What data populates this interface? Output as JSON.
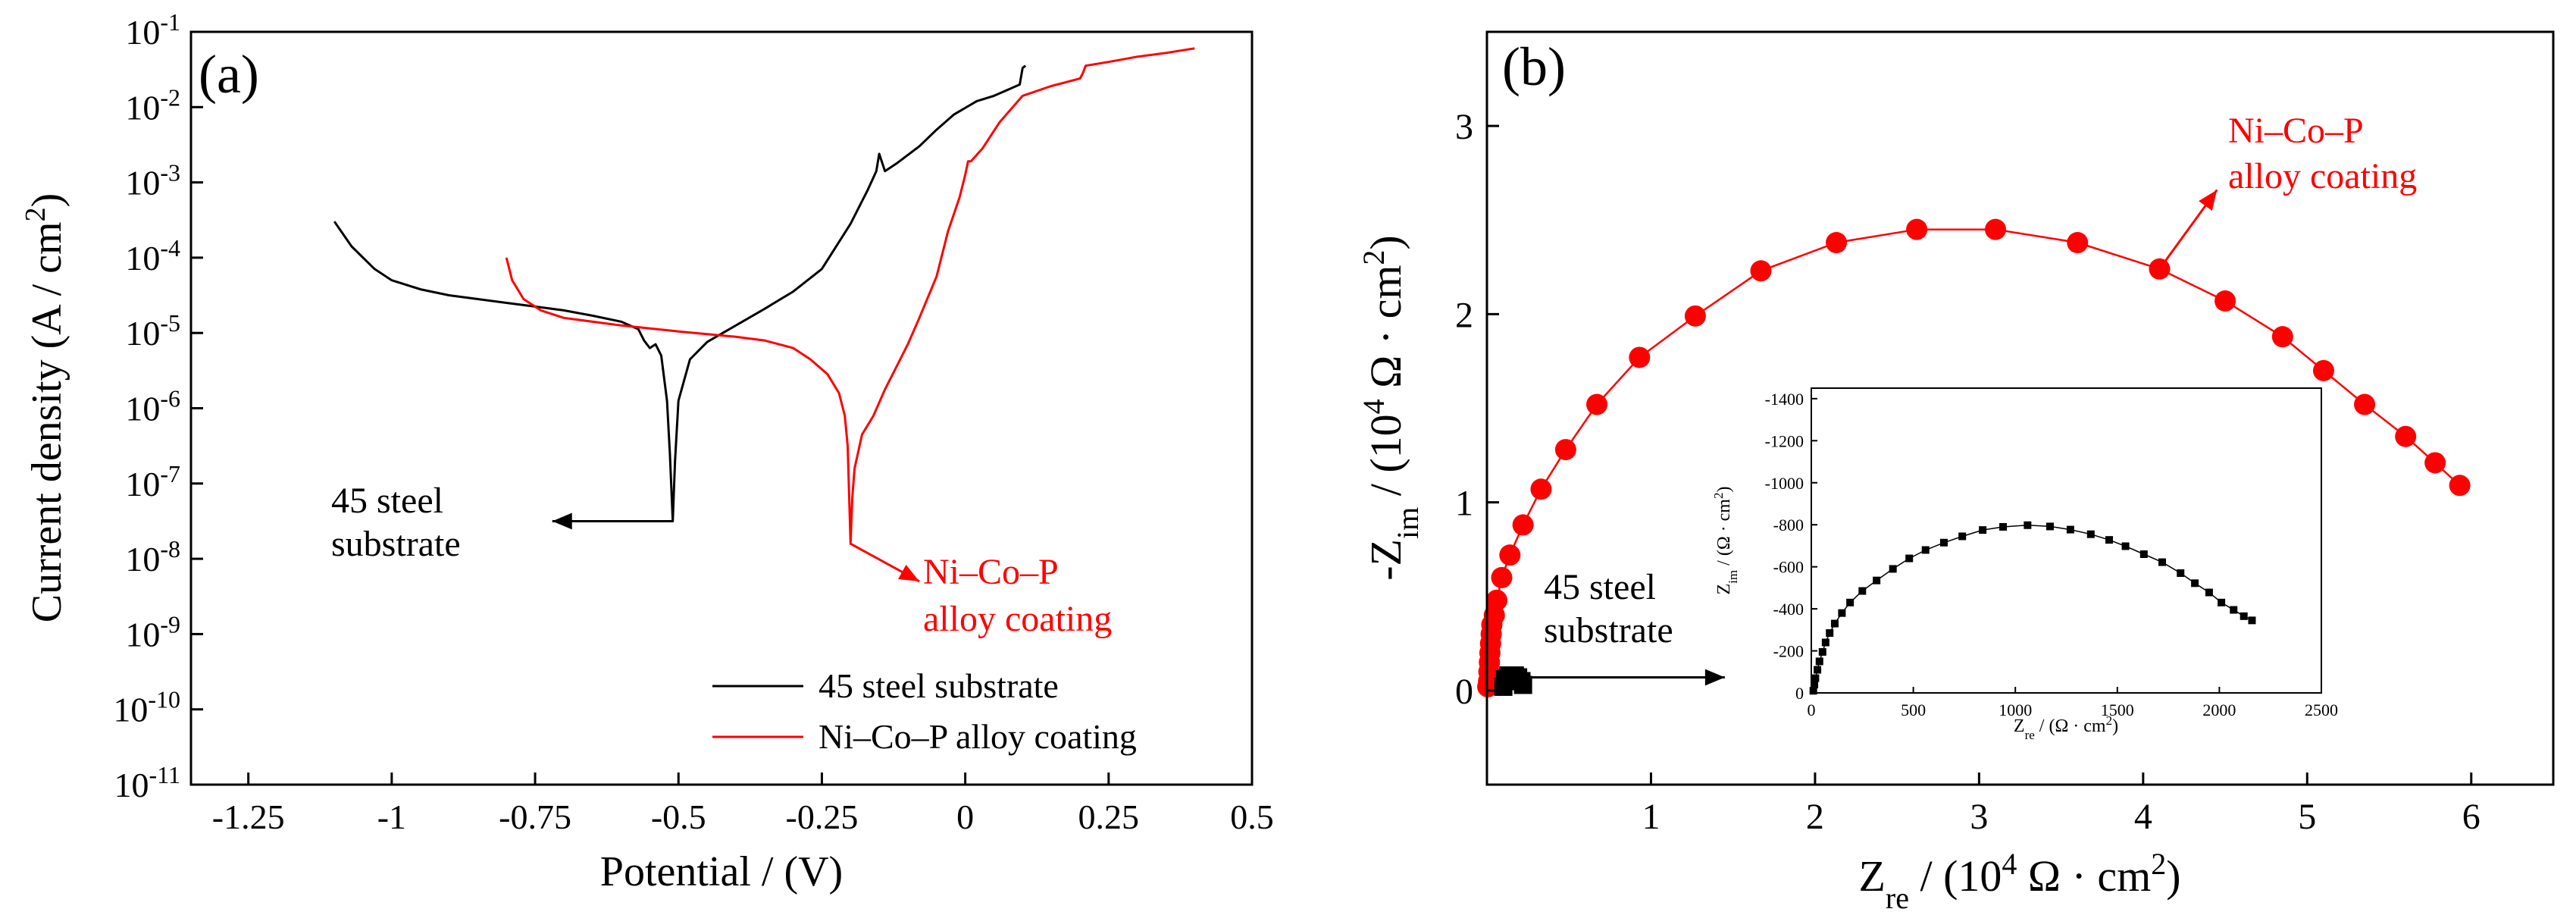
{
  "colors": {
    "steel": "#000000",
    "coating": "#ff0000",
    "axis": "#000000"
  },
  "chart_data": [
    {
      "id": "a",
      "panel_label": "(a)",
      "type": "line",
      "title": "",
      "xlabel": "Potential / (V)",
      "ylabel_main": "Current density (A / cm",
      "ylabel_sup": "2",
      "ylabel_end": ")",
      "xlim": [
        -1.35,
        0.5
      ],
      "ylim_log10": [
        -11,
        -1
      ],
      "yscale": "log",
      "x_ticks": [
        -1.25,
        -1,
        -0.75,
        -0.5,
        -0.25,
        0,
        0.25,
        0.5
      ],
      "x_tick_labels": [
        "-1.25",
        "-1",
        "-0.75",
        "-0.5",
        "-0.25",
        "0",
        "0.25",
        "0.5"
      ],
      "y_ticks_exp": [
        -11,
        -10,
        -9,
        -8,
        -7,
        -6,
        -5,
        -4,
        -3,
        -2,
        -1
      ],
      "y_tick_base": "10",
      "y_tick_exps": [
        "-11",
        "-10",
        "-9",
        "-8",
        "-7",
        "-6",
        "-5",
        "-4",
        "-3",
        "-2",
        "-1"
      ],
      "series": [
        {
          "name": "45 steel substrate",
          "color": "#000000",
          "points": [
            [
              -1.1,
              -3.52
            ],
            [
              -1.07,
              -3.85
            ],
            [
              -1.03,
              -4.15
            ],
            [
              -1.0,
              -4.3
            ],
            [
              -0.95,
              -4.42
            ],
            [
              -0.9,
              -4.5
            ],
            [
              -0.85,
              -4.55
            ],
            [
              -0.8,
              -4.6
            ],
            [
              -0.75,
              -4.65
            ],
            [
              -0.7,
              -4.7
            ],
            [
              -0.65,
              -4.77
            ],
            [
              -0.6,
              -4.85
            ],
            [
              -0.57,
              -4.95
            ],
            [
              -0.56,
              -5.1
            ],
            [
              -0.55,
              -5.2
            ],
            [
              -0.54,
              -5.15
            ],
            [
              -0.53,
              -5.3
            ],
            [
              -0.52,
              -5.9
            ],
            [
              -0.515,
              -6.6
            ],
            [
              -0.51,
              -7.5
            ],
            [
              -0.506,
              -6.7
            ],
            [
              -0.5,
              -5.9
            ],
            [
              -0.48,
              -5.35
            ],
            [
              -0.45,
              -5.12
            ],
            [
              -0.4,
              -4.9
            ],
            [
              -0.35,
              -4.68
            ],
            [
              -0.3,
              -4.45
            ],
            [
              -0.25,
              -4.15
            ],
            [
              -0.2,
              -3.55
            ],
            [
              -0.17,
              -3.1
            ],
            [
              -0.155,
              -2.85
            ],
            [
              -0.15,
              -2.62
            ],
            [
              -0.14,
              -2.85
            ],
            [
              -0.12,
              -2.75
            ],
            [
              -0.08,
              -2.52
            ],
            [
              -0.05,
              -2.3
            ],
            [
              -0.02,
              -2.1
            ],
            [
              0.02,
              -1.92
            ],
            [
              0.05,
              -1.85
            ],
            [
              0.08,
              -1.75
            ],
            [
              0.095,
              -1.7
            ],
            [
              0.1,
              -1.48
            ],
            [
              0.105,
              -1.45
            ]
          ]
        },
        {
          "name": "Ni–Co–P alloy coating",
          "color": "#ff0000",
          "points": [
            [
              -0.8,
              -4.0
            ],
            [
              -0.79,
              -4.3
            ],
            [
              -0.77,
              -4.55
            ],
            [
              -0.74,
              -4.7
            ],
            [
              -0.7,
              -4.8
            ],
            [
              -0.6,
              -4.9
            ],
            [
              -0.5,
              -4.98
            ],
            [
              -0.4,
              -5.05
            ],
            [
              -0.35,
              -5.1
            ],
            [
              -0.3,
              -5.2
            ],
            [
              -0.27,
              -5.35
            ],
            [
              -0.24,
              -5.55
            ],
            [
              -0.22,
              -5.8
            ],
            [
              -0.21,
              -6.1
            ],
            [
              -0.205,
              -6.5
            ],
            [
              -0.2,
              -7.8
            ],
            [
              -0.197,
              -7.2
            ],
            [
              -0.193,
              -6.8
            ],
            [
              -0.18,
              -6.35
            ],
            [
              -0.16,
              -6.1
            ],
            [
              -0.14,
              -5.75
            ],
            [
              -0.12,
              -5.45
            ],
            [
              -0.1,
              -5.15
            ],
            [
              -0.08,
              -4.8
            ],
            [
              -0.05,
              -4.25
            ],
            [
              -0.03,
              -3.65
            ],
            [
              -0.01,
              -3.2
            ],
            [
              0.0,
              -2.9
            ],
            [
              0.005,
              -2.72
            ],
            [
              0.01,
              -2.72
            ],
            [
              0.03,
              -2.55
            ],
            [
              0.06,
              -2.2
            ],
            [
              0.1,
              -1.85
            ],
            [
              0.15,
              -1.72
            ],
            [
              0.2,
              -1.62
            ],
            [
              0.205,
              -1.55
            ],
            [
              0.21,
              -1.45
            ],
            [
              0.25,
              -1.4
            ],
            [
              0.3,
              -1.33
            ],
            [
              0.35,
              -1.28
            ],
            [
              0.4,
              -1.22
            ]
          ]
        }
      ],
      "legend": {
        "position": "bottom-right",
        "entries": [
          "45 steel substrate",
          "Ni–Co–P alloy coating"
        ]
      },
      "annotations": [
        {
          "text_lines": [
            "45 steel",
            "substrate"
          ],
          "color": "#000000",
          "from": [
            -0.51,
            -7.5
          ],
          "to": [
            -0.72,
            -7.5
          ]
        },
        {
          "text_lines": [
            "Ni–Co–P",
            "alloy coating"
          ],
          "color": "#ff0000",
          "from": [
            -0.2,
            -7.8
          ],
          "to": [
            -0.08,
            -8.3
          ]
        }
      ]
    },
    {
      "id": "b",
      "panel_label": "(b)",
      "type": "scatter",
      "xlabel_main": "Z",
      "xlabel_sub": "re",
      "xlabel_rest": " / (10",
      "xlabel_sup": "4",
      "xlabel_end": " Ω · cm",
      "xlabel_sup2": "2",
      "xlabel_close": ")",
      "ylabel_main": "-Z",
      "ylabel_sub": "im",
      "ylabel_rest": " / (10",
      "ylabel_sup": "4",
      "ylabel_end": " Ω · cm",
      "ylabel_sup2": "2",
      "ylabel_close": ")",
      "xlim": [
        0,
        6.5
      ],
      "ylim": [
        -0.5,
        3.5
      ],
      "x_ticks": [
        1,
        2,
        3,
        4,
        5,
        6
      ],
      "x_tick_labels": [
        "1",
        "2",
        "3",
        "4",
        "5",
        "6"
      ],
      "y_ticks": [
        0,
        1,
        2,
        3
      ],
      "y_tick_labels": [
        "0",
        "1",
        "2",
        "3"
      ],
      "series": [
        {
          "name": "Ni–Co–P alloy coating",
          "color": "#ff0000",
          "marker": "circle",
          "points": [
            [
              0.005,
              0.02
            ],
            [
              0.01,
              0.05
            ],
            [
              0.012,
              0.1
            ],
            [
              0.015,
              0.15
            ],
            [
              0.018,
              0.2
            ],
            [
              0.022,
              0.25
            ],
            [
              0.026,
              0.3
            ],
            [
              0.03,
              0.35
            ],
            [
              0.045,
              0.4
            ],
            [
              0.06,
              0.48
            ],
            [
              0.09,
              0.6
            ],
            [
              0.14,
              0.72
            ],
            [
              0.22,
              0.88
            ],
            [
              0.33,
              1.07
            ],
            [
              0.48,
              1.28
            ],
            [
              0.67,
              1.52
            ],
            [
              0.93,
              1.77
            ],
            [
              1.27,
              1.99
            ],
            [
              1.67,
              2.23
            ],
            [
              2.13,
              2.38
            ],
            [
              2.62,
              2.45
            ],
            [
              3.1,
              2.45
            ],
            [
              3.6,
              2.38
            ],
            [
              4.1,
              2.24
            ],
            [
              4.5,
              2.07
            ],
            [
              4.85,
              1.88
            ],
            [
              5.1,
              1.7
            ],
            [
              5.35,
              1.52
            ],
            [
              5.6,
              1.35
            ],
            [
              5.78,
              1.21
            ],
            [
              5.93,
              1.09
            ]
          ]
        },
        {
          "name": "45 steel substrate",
          "color": "#000000",
          "marker": "square",
          "points": [
            [
              0.1,
              0.02
            ],
            [
              0.11,
              0.06
            ],
            [
              0.13,
              0.08
            ],
            [
              0.15,
              0.08
            ],
            [
              0.17,
              0.08
            ],
            [
              0.19,
              0.07
            ],
            [
              0.21,
              0.05
            ],
            [
              0.22,
              0.03
            ]
          ]
        }
      ],
      "annotations": [
        {
          "text_lines": [
            "Ni–Co–P",
            "alloy coating"
          ],
          "color": "#ff0000",
          "from": [
            4.1,
            2.24
          ],
          "to": [
            4.45,
            2.66
          ]
        },
        {
          "text_lines": [
            "45 steel",
            "substrate"
          ],
          "color": "#000000",
          "from": [
            0.25,
            0.07
          ],
          "to": [
            1.45,
            0.07
          ]
        }
      ],
      "inset": {
        "type": "scatter",
        "xlabel_main": "Z",
        "xlabel_sub": "re",
        "xlabel_rest": " / (Ω · cm",
        "xlabel_sup": "2",
        "xlabel_close": ")",
        "ylabel_main": "Z",
        "ylabel_sub": "im",
        "ylabel_rest": " / (Ω · cm",
        "ylabel_sup": "2",
        "ylabel_close": ")",
        "xlim": [
          0,
          2500
        ],
        "ylim": [
          0,
          -1450
        ],
        "x_ticks": [
          0,
          500,
          1000,
          1500,
          2000,
          2500
        ],
        "x_tick_labels": [
          "0",
          "500",
          "1000",
          "1500",
          "2000",
          "2500"
        ],
        "y_ticks": [
          0,
          -200,
          -400,
          -600,
          -800,
          -1000,
          -1200,
          -1400
        ],
        "y_tick_labels": [
          "0",
          "-200",
          "-400",
          "-600",
          "-800",
          "-1000",
          "-1200",
          "-1400"
        ],
        "series": [
          {
            "name": "45 steel substrate",
            "color": "#000000",
            "marker": "square",
            "points": [
              [
                10,
                -10
              ],
              [
                15,
                -40
              ],
              [
                20,
                -70
              ],
              [
                30,
                -110
              ],
              [
                40,
                -150
              ],
              [
                55,
                -195
              ],
              [
                70,
                -240
              ],
              [
                90,
                -285
              ],
              [
                115,
                -330
              ],
              [
                150,
                -380
              ],
              [
                190,
                -430
              ],
              [
                250,
                -485
              ],
              [
                320,
                -535
              ],
              [
                400,
                -590
              ],
              [
                480,
                -640
              ],
              [
                560,
                -680
              ],
              [
                650,
                -715
              ],
              [
                740,
                -745
              ],
              [
                840,
                -775
              ],
              [
                940,
                -790
              ],
              [
                1060,
                -798
              ],
              [
                1170,
                -792
              ],
              [
                1270,
                -777
              ],
              [
                1370,
                -755
              ],
              [
                1460,
                -728
              ],
              [
                1540,
                -698
              ],
              [
                1630,
                -660
              ],
              [
                1720,
                -622
              ],
              [
                1810,
                -570
              ],
              [
                1880,
                -522
              ],
              [
                1950,
                -478
              ],
              [
                2010,
                -430
              ],
              [
                2070,
                -395
              ],
              [
                2120,
                -365
              ],
              [
                2160,
                -345
              ]
            ]
          }
        ]
      }
    }
  ]
}
